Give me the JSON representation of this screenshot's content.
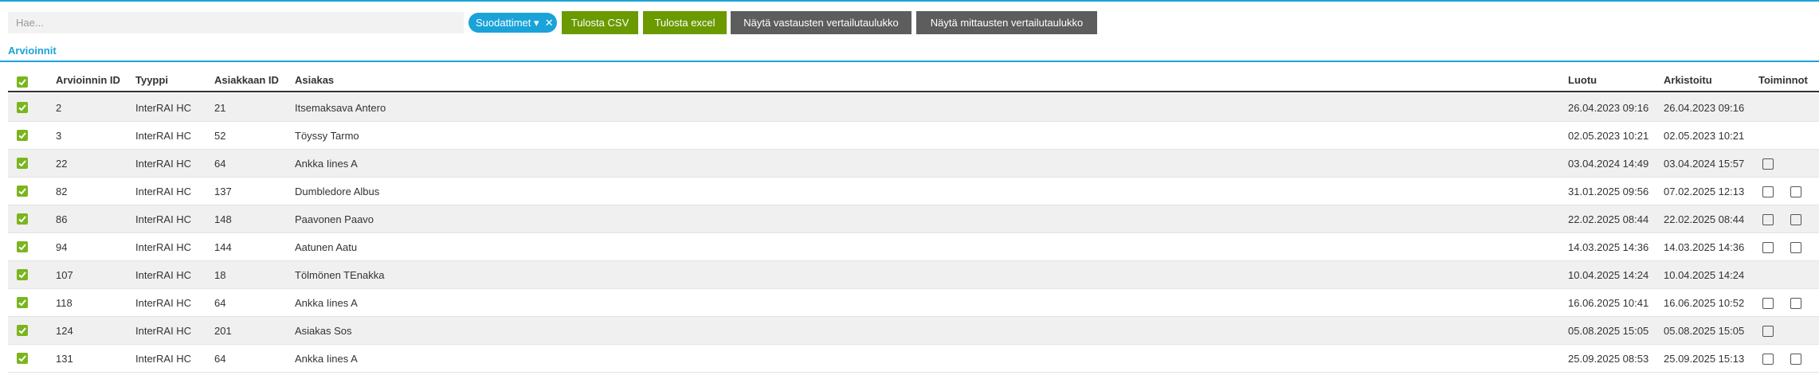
{
  "toolbar": {
    "search_placeholder": "Hae...",
    "filter_chip": "Suodattimet",
    "buttons": [
      "Tulosta CSV",
      "Tulosta excel",
      "Näytä vastausten vertailutaulukko",
      "Näytä mittausten vertailutaulukko"
    ]
  },
  "tab": "Arvioinnit",
  "table": {
    "headers": [
      "Arvioinnin ID",
      "Tyyppi",
      "Asiakkaan ID",
      "Asiakas",
      "Luotu",
      "Arkistoitu",
      "Toiminnot"
    ],
    "rows": [
      [
        "2",
        "InterRAI HC",
        "21",
        "Itsemaksava Antero",
        "26.04.2023 09:16",
        "26.04.2023 09:16"
      ],
      [
        "3",
        "InterRAI HC",
        "52",
        "Töyssy Tarmo",
        "02.05.2023 10:21",
        "02.05.2023 10:21"
      ],
      [
        "22",
        "InterRAI HC",
        "64",
        "Ankka Iines A",
        "03.04.2024 14:49",
        "03.04.2024 15:57"
      ],
      [
        "82",
        "InterRAI HC",
        "137",
        "Dumbledore Albus",
        "31.01.2025 09:56",
        "07.02.2025 12:13"
      ],
      [
        "86",
        "InterRAI HC",
        "148",
        "Paavonen Paavo",
        "22.02.2025 08:44",
        "22.02.2025 08:44"
      ],
      [
        "94",
        "InterRAI HC",
        "144",
        "Aatunen Aatu",
        "14.03.2025 14:36",
        "14.03.2025 14:36"
      ],
      [
        "107",
        "InterRAI HC",
        "18",
        "Tölmönen TEnakka",
        "10.04.2025 14:24",
        "10.04.2025 14:24"
      ],
      [
        "118",
        "InterRAI HC",
        "64",
        "Ankka Iines A",
        "16.06.2025 10:41",
        "16.06.2025 10:52"
      ],
      [
        "124",
        "InterRAI HC",
        "201",
        "Asiakas Sos",
        "05.08.2025 15:05",
        "05.08.2025 15:05"
      ],
      [
        "131",
        "InterRAI HC",
        "64",
        "Ankka Iines A",
        "25.09.2025 08:53",
        "25.09.2025 15:13"
      ]
    ]
  }
}
